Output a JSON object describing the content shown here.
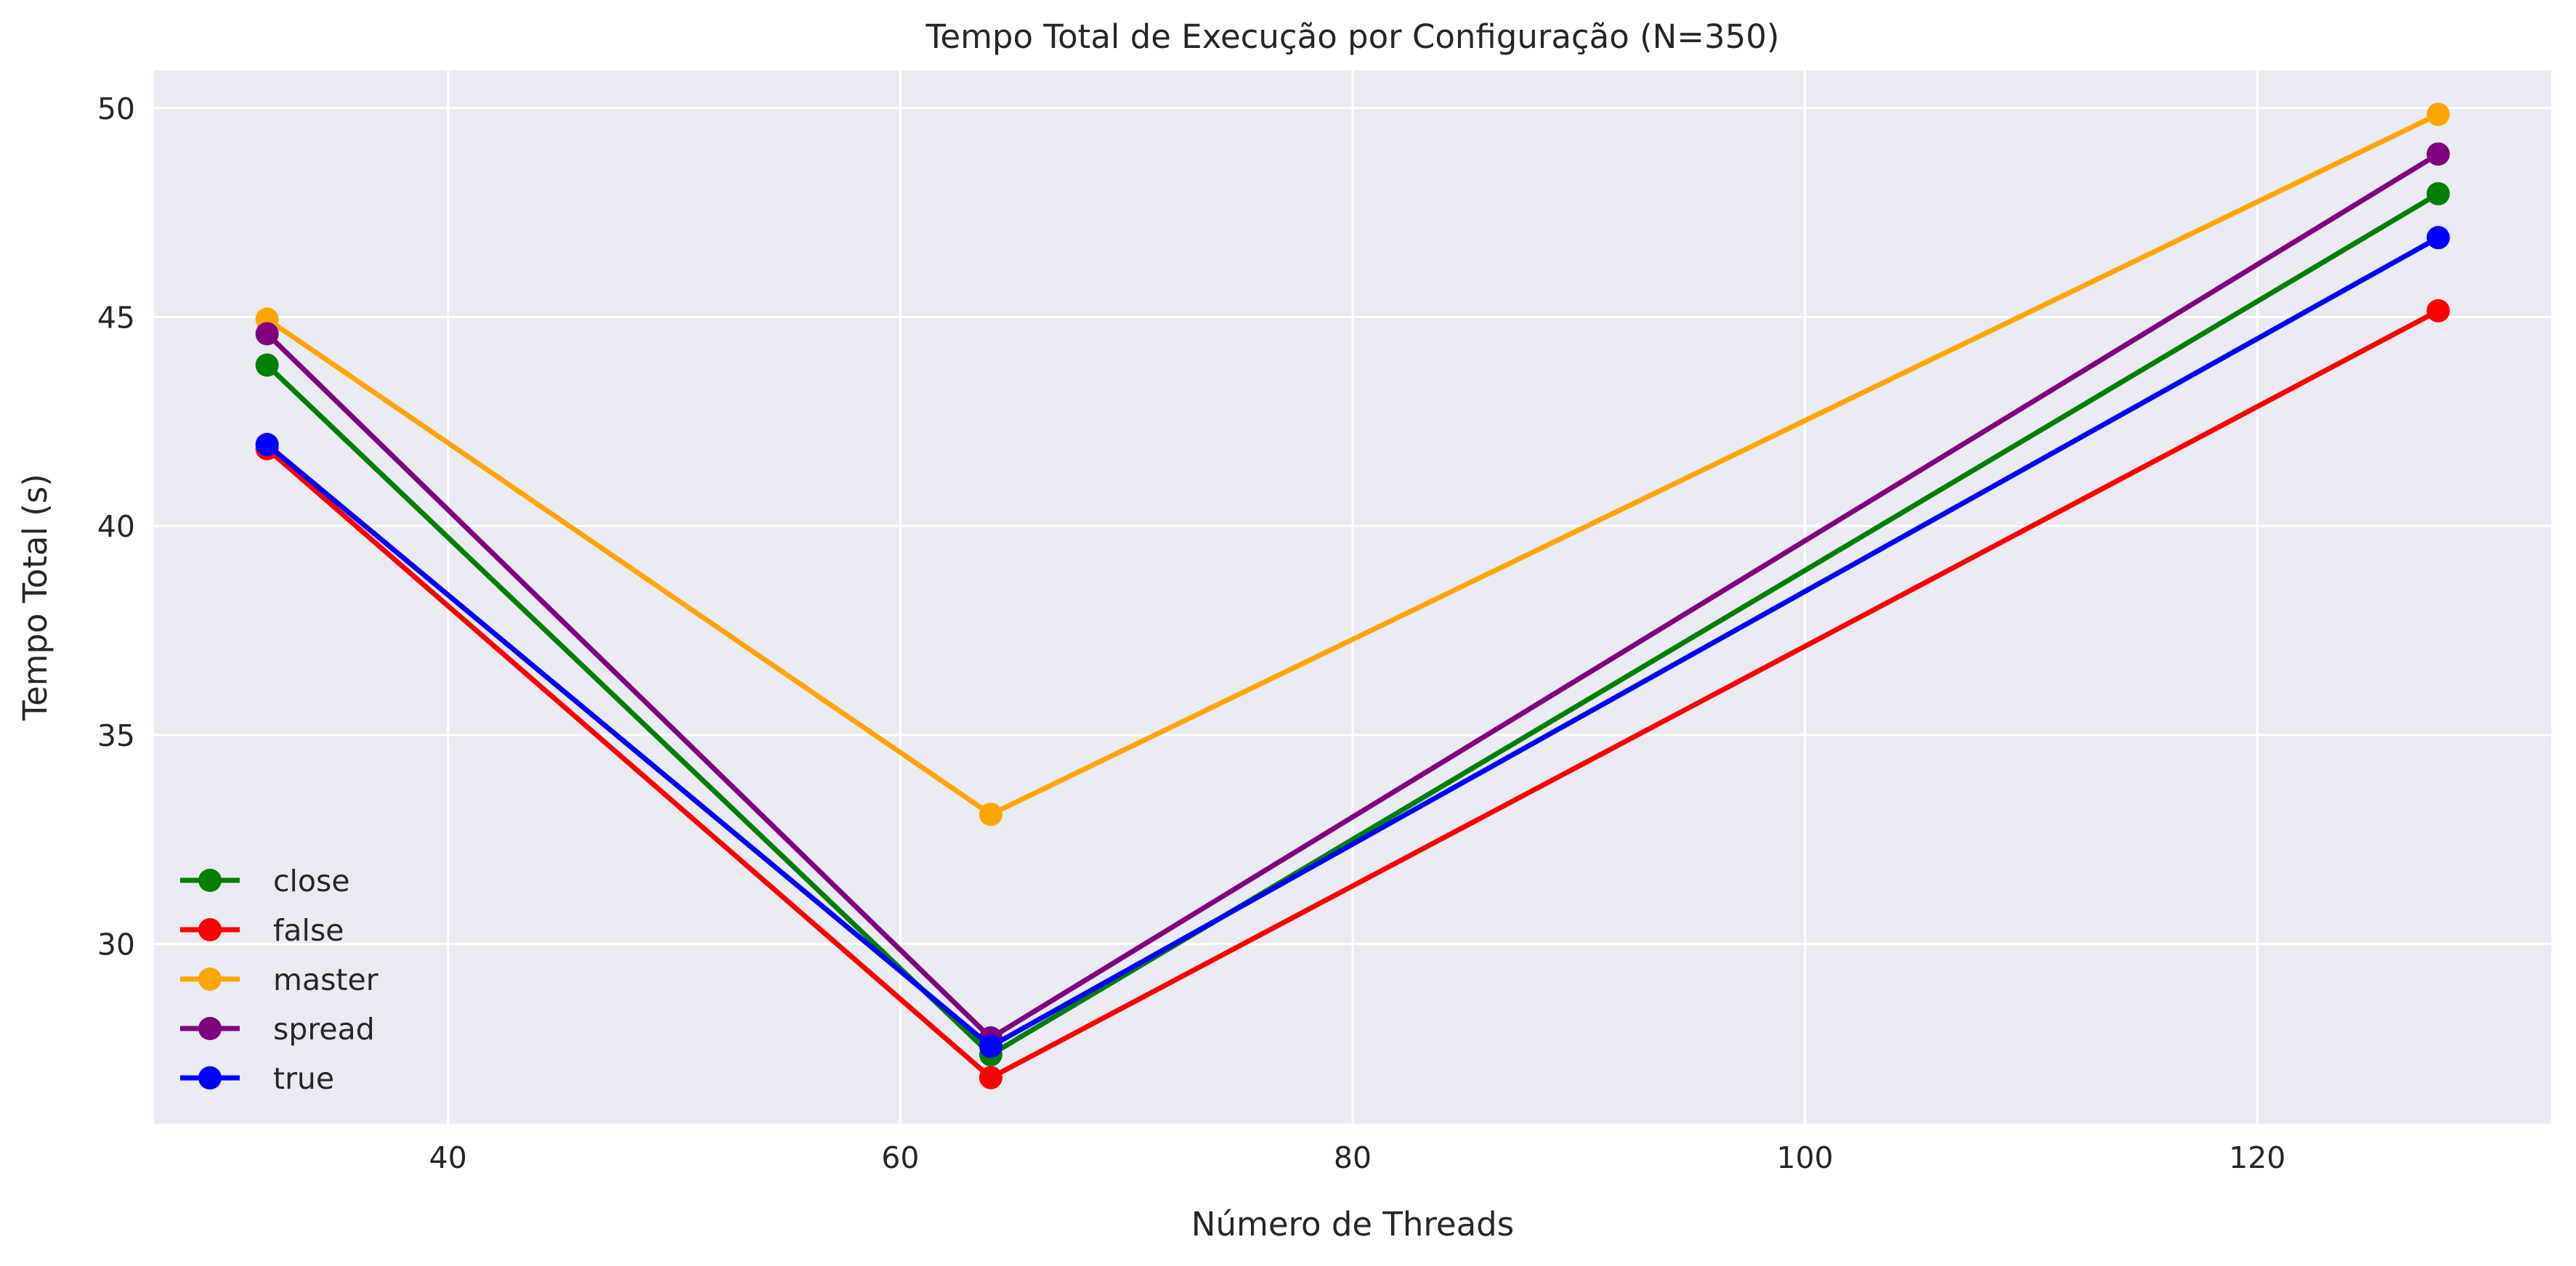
{
  "chart_data": {
    "type": "line",
    "title": "Tempo Total de Execução por Configuração (N=350)",
    "xlabel": "Número de Threads",
    "ylabel": "Tempo Total (s)",
    "xlim": [
      27,
      133
    ],
    "ylim": [
      25.7,
      50.9
    ],
    "xticks": [
      40,
      60,
      80,
      100,
      120
    ],
    "yticks": [
      30,
      35,
      40,
      45,
      50
    ],
    "grid": true,
    "legend_position": "lower-left",
    "x": [
      32,
      64,
      128
    ],
    "series": [
      {
        "name": "close",
        "color": "#008000",
        "values": [
          43.85,
          27.35,
          47.95
        ]
      },
      {
        "name": "false",
        "color": "#ff0000",
        "values": [
          41.85,
          26.8,
          45.15
        ]
      },
      {
        "name": "master",
        "color": "#ffa500",
        "values": [
          44.95,
          33.1,
          49.85
        ]
      },
      {
        "name": "spread",
        "color": "#800080",
        "values": [
          44.6,
          27.75,
          48.9
        ]
      },
      {
        "name": "true",
        "color": "#0000ff",
        "values": [
          41.95,
          27.55,
          46.9
        ]
      }
    ]
  }
}
